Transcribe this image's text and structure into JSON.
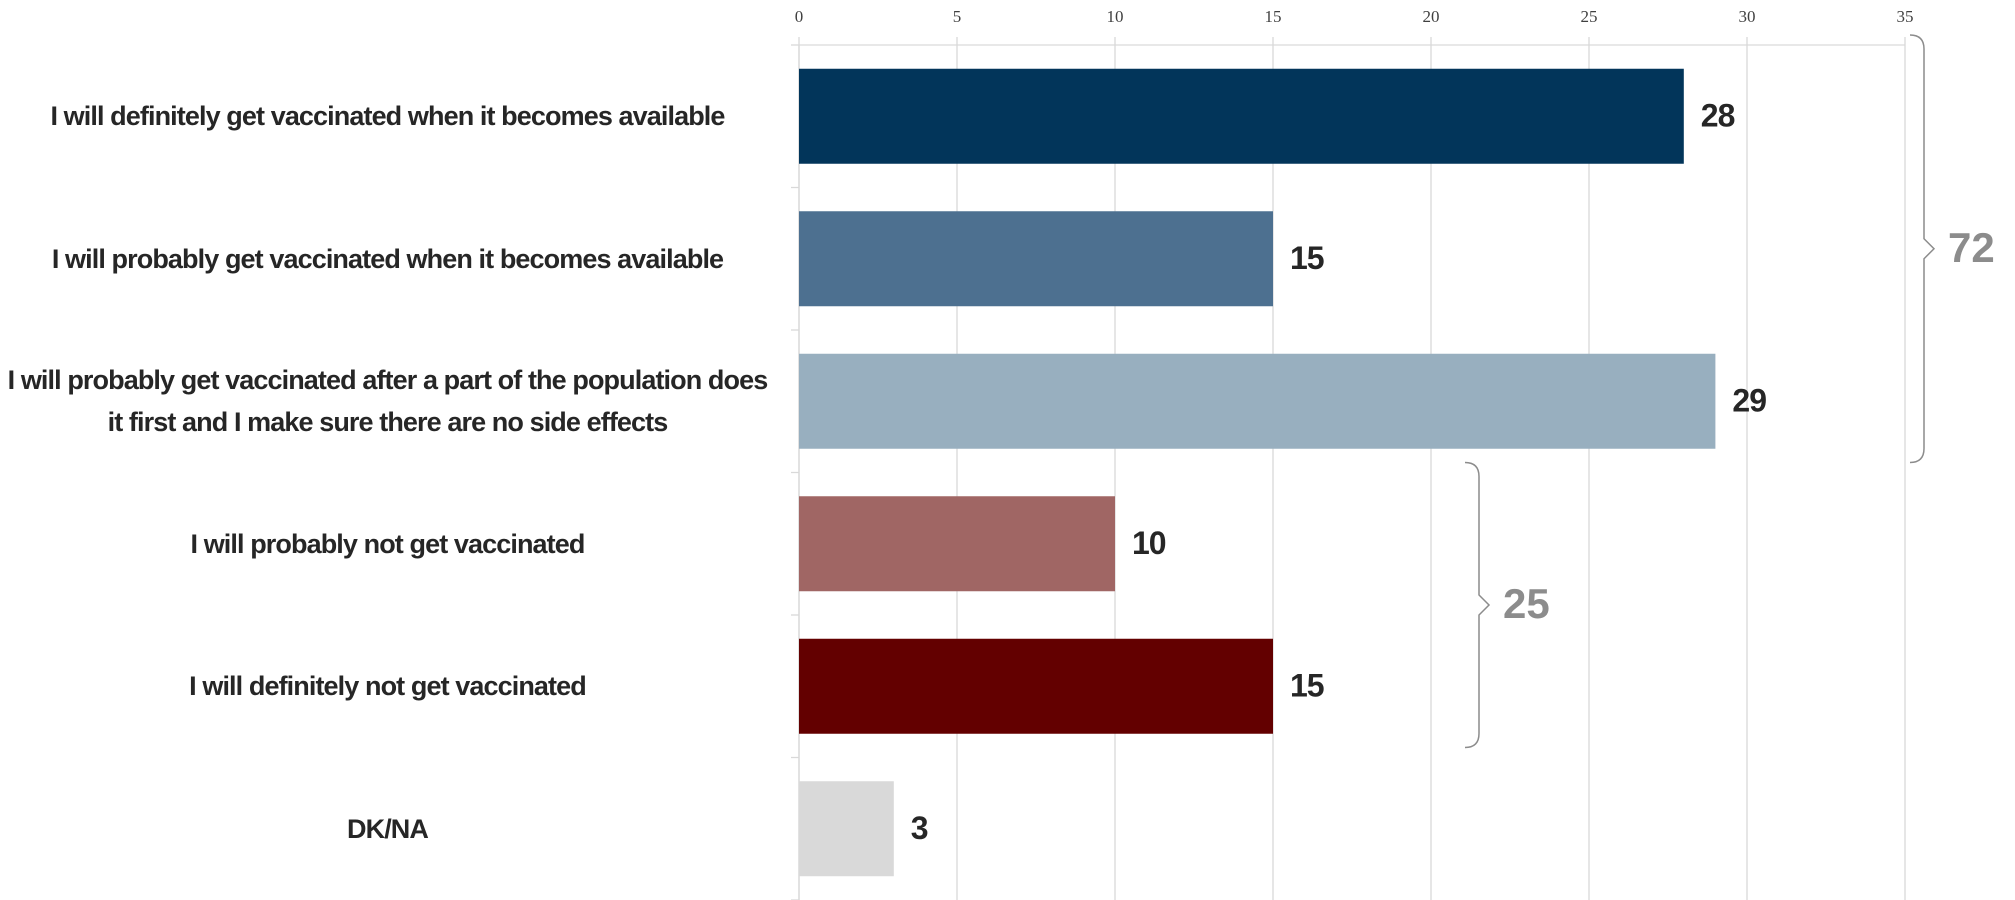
{
  "chart_data": {
    "type": "bar",
    "orientation": "horizontal",
    "categories": [
      "I will definitely get vaccinated when it becomes available",
      "I will probably get vaccinated when it becomes available",
      "I will probably get vaccinated after a part of the population does it first and I make sure there are no side effects",
      "I will probably not get vaccinated",
      "I will definitely not get vaccinated",
      "DK/NA"
    ],
    "values": [
      28,
      15,
      29,
      10,
      15,
      3
    ],
    "colors": [
      "#02355a",
      "#4d7090",
      "#98afbf",
      "#a06664",
      "#630000",
      "#d9d9d9"
    ],
    "xlim": [
      0,
      35
    ],
    "xticks": [
      0,
      5,
      10,
      15,
      20,
      25,
      30,
      35
    ],
    "grid": true,
    "annotations": [
      72,
      25
    ]
  }
}
